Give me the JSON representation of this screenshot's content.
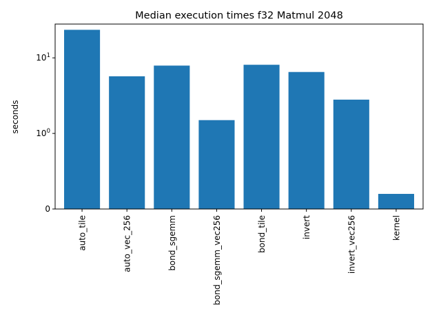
{
  "chart_data": {
    "type": "bar",
    "title": "Median execution times f32 Matmul 2048",
    "xlabel": "",
    "ylabel": "seconds",
    "y_scale": "symlog",
    "y_linthresh": 1,
    "yticks": [
      {
        "value": 0,
        "label": "0",
        "base": "",
        "exp": ""
      },
      {
        "value": 1,
        "label": "",
        "base": "10",
        "exp": "0"
      },
      {
        "value": 10,
        "label": "",
        "base": "10",
        "exp": "1"
      }
    ],
    "ylim": [
      0,
      28
    ],
    "categories": [
      "auto_tile",
      "auto_vec_256",
      "bond_sgemm",
      "bond_sgemm_vec256",
      "bond_tile",
      "invert",
      "invert_vec256",
      "kernel"
    ],
    "values": [
      23.5,
      5.7,
      7.9,
      1.5,
      8.1,
      6.5,
      2.8,
      0.2
    ],
    "bar_color": "#1f77b4",
    "grid": false,
    "legend": "none"
  }
}
